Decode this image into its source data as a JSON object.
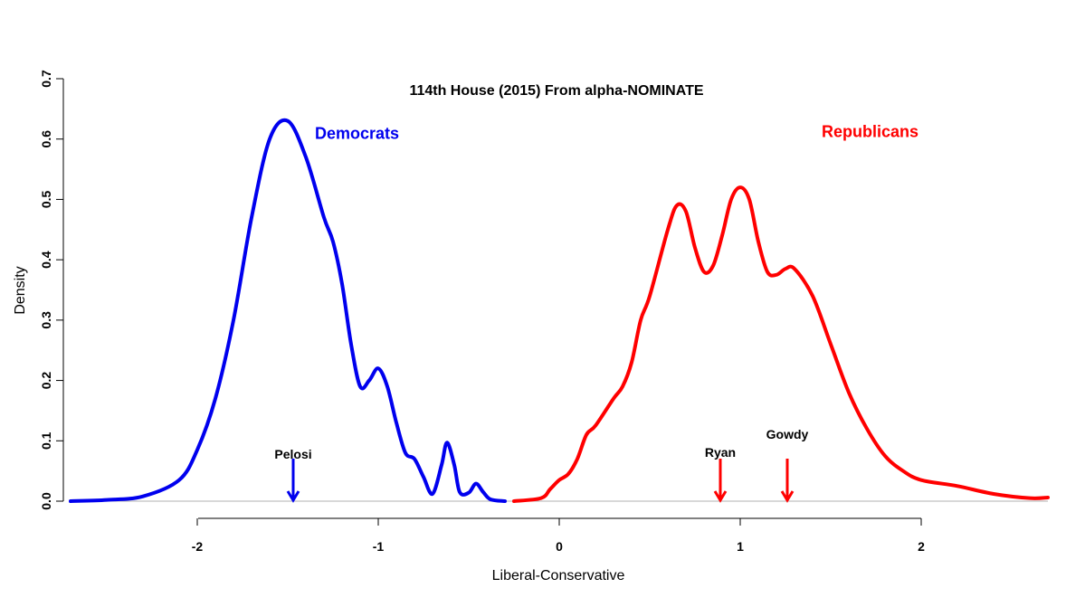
{
  "chart_data": {
    "type": "line",
    "title": "114th House (2015) From alpha-NOMINATE",
    "xlabel": "Liberal-Conservative",
    "ylabel": "Density",
    "xlim": [
      -2.7,
      2.7
    ],
    "ylim": [
      0,
      0.7
    ],
    "x_ticks": [
      -2,
      -1,
      0,
      1,
      2
    ],
    "x_tick_labels": [
      "-2",
      "-1",
      "0",
      "1",
      "2"
    ],
    "y_ticks": [
      0.0,
      0.1,
      0.2,
      0.3,
      0.4,
      0.5,
      0.6,
      0.7
    ],
    "y_tick_labels": [
      "0.0",
      "0.1",
      "0.2",
      "0.3",
      "0.4",
      "0.5",
      "0.6",
      "0.7"
    ],
    "grid": false,
    "series": [
      {
        "name": "Democrats",
        "color": "#0000ee",
        "x": [
          -2.7,
          -2.5,
          -2.3,
          -2.1,
          -2.0,
          -1.9,
          -1.8,
          -1.7,
          -1.6,
          -1.5,
          -1.4,
          -1.3,
          -1.25,
          -1.2,
          -1.15,
          -1.1,
          -1.05,
          -1.0,
          -0.95,
          -0.9,
          -0.85,
          -0.8,
          -0.75,
          -0.7,
          -0.65,
          -0.62,
          -0.58,
          -0.55,
          -0.5,
          -0.46,
          -0.42,
          -0.38,
          -0.3
        ],
        "values": [
          0.0,
          0.002,
          0.008,
          0.035,
          0.085,
          0.17,
          0.3,
          0.47,
          0.6,
          0.63,
          0.57,
          0.47,
          0.43,
          0.36,
          0.26,
          0.19,
          0.2,
          0.22,
          0.19,
          0.13,
          0.08,
          0.07,
          0.04,
          0.012,
          0.06,
          0.097,
          0.06,
          0.015,
          0.014,
          0.029,
          0.015,
          0.003,
          0.0
        ]
      },
      {
        "name": "Republicans",
        "color": "#ff0000",
        "x": [
          -0.25,
          -0.1,
          -0.05,
          0.0,
          0.05,
          0.1,
          0.15,
          0.2,
          0.3,
          0.35,
          0.4,
          0.45,
          0.5,
          0.6,
          0.65,
          0.7,
          0.75,
          0.8,
          0.85,
          0.9,
          0.95,
          1.0,
          1.05,
          1.1,
          1.15,
          1.2,
          1.25,
          1.3,
          1.4,
          1.5,
          1.6,
          1.7,
          1.8,
          1.9,
          2.0,
          2.2,
          2.4,
          2.6,
          2.7
        ],
        "values": [
          0.0,
          0.005,
          0.02,
          0.035,
          0.045,
          0.07,
          0.11,
          0.125,
          0.17,
          0.19,
          0.23,
          0.3,
          0.34,
          0.45,
          0.49,
          0.48,
          0.42,
          0.38,
          0.39,
          0.44,
          0.5,
          0.52,
          0.5,
          0.43,
          0.38,
          0.375,
          0.385,
          0.385,
          0.34,
          0.26,
          0.18,
          0.12,
          0.075,
          0.05,
          0.035,
          0.025,
          0.012,
          0.005,
          0.006
        ]
      }
    ],
    "annotations": [
      {
        "label": "Pelosi",
        "x": -1.47,
        "color": "#0000ee"
      },
      {
        "label": "Ryan",
        "x": 0.89,
        "color": "#ff0000"
      },
      {
        "label": "Gowdy",
        "x": 1.26,
        "color": "#ff0000"
      }
    ],
    "party_labels": [
      {
        "text": "Democrats",
        "color": "#0000ee",
        "x": -1.35,
        "y": 0.6
      },
      {
        "text": "Republicans",
        "color": "#ff0000",
        "x": 1.45,
        "y": 0.603
      }
    ]
  }
}
